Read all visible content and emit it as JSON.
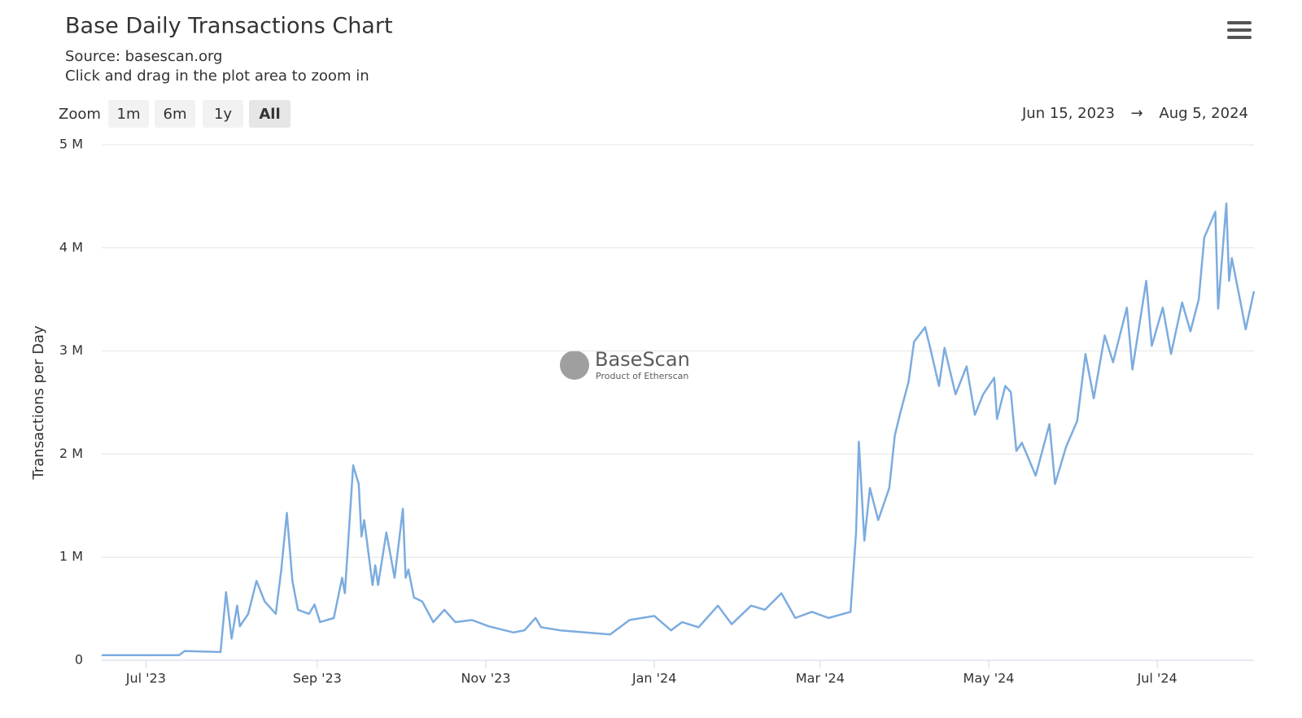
{
  "chart_data": {
    "type": "line",
    "title": "Base Daily Transactions Chart",
    "subtitle": "Source: basescan.org",
    "hint": "Click and drag in the plot area to zoom in",
    "y_label": "Transactions per Day",
    "watermark": {
      "name": "BaseScan",
      "tagline": "Product of Etherscan"
    },
    "grid": true,
    "xlim": [
      "2023-06-15",
      "2024-08-05"
    ],
    "xticks": [
      {
        "value": "2023-07-01",
        "label": "Jul '23"
      },
      {
        "value": "2023-09-01",
        "label": "Sep '23"
      },
      {
        "value": "2023-11-01",
        "label": "Nov '23"
      },
      {
        "value": "2024-01-01",
        "label": "Jan '24"
      },
      {
        "value": "2024-03-01",
        "label": "Mar '24"
      },
      {
        "value": "2024-05-01",
        "label": "May '24"
      },
      {
        "value": "2024-07-01",
        "label": "Jul '24"
      }
    ],
    "ylim": [
      0,
      5000000
    ],
    "yticks": [
      0,
      {
        "value": 1000000,
        "label": "1 M"
      },
      {
        "value": 2000000,
        "label": "2 M"
      },
      {
        "value": 3000000,
        "label": "3 M"
      },
      {
        "value": 4000000,
        "label": "4 M"
      },
      {
        "value": 5000000,
        "label": "5 M"
      }
    ],
    "x": [
      "2023-06-15",
      "2023-07-13",
      "2023-07-15",
      "2023-07-28",
      "2023-07-30",
      "2023-08-01",
      "2023-08-03",
      "2023-08-04",
      "2023-08-07",
      "2023-08-10",
      "2023-08-13",
      "2023-08-17",
      "2023-08-19",
      "2023-08-21",
      "2023-08-23",
      "2023-08-25",
      "2023-08-29",
      "2023-08-31",
      "2023-09-02",
      "2023-09-07",
      "2023-09-10",
      "2023-09-11",
      "2023-09-14",
      "2023-09-16",
      "2023-09-17",
      "2023-09-18",
      "2023-09-21",
      "2023-09-22",
      "2023-09-23",
      "2023-09-26",
      "2023-09-29",
      "2023-10-02",
      "2023-10-03",
      "2023-10-04",
      "2023-10-06",
      "2023-10-09",
      "2023-10-13",
      "2023-10-17",
      "2023-10-21",
      "2023-10-27",
      "2023-11-02",
      "2023-11-11",
      "2023-11-15",
      "2023-11-19",
      "2023-11-21",
      "2023-11-28",
      "2023-12-07",
      "2023-12-16",
      "2023-12-23",
      "2024-01-01",
      "2024-01-07",
      "2024-01-11",
      "2024-01-17",
      "2024-01-24",
      "2024-01-29",
      "2024-02-05",
      "2024-02-10",
      "2024-02-16",
      "2024-02-21",
      "2024-02-27",
      "2024-03-04",
      "2024-03-12",
      "2024-03-14",
      "2024-03-15",
      "2024-03-17",
      "2024-03-19",
      "2024-03-22",
      "2024-03-26",
      "2024-03-28",
      "2024-03-30",
      "2024-04-02",
      "2024-04-04",
      "2024-04-08",
      "2024-04-10",
      "2024-04-13",
      "2024-04-15",
      "2024-04-19",
      "2024-04-23",
      "2024-04-26",
      "2024-04-29",
      "2024-05-03",
      "2024-05-04",
      "2024-05-07",
      "2024-05-09",
      "2024-05-11",
      "2024-05-13",
      "2024-05-18",
      "2024-05-23",
      "2024-05-25",
      "2024-05-29",
      "2024-06-02",
      "2024-06-05",
      "2024-06-08",
      "2024-06-12",
      "2024-06-15",
      "2024-06-20",
      "2024-06-22",
      "2024-06-27",
      "2024-06-29",
      "2024-07-03",
      "2024-07-06",
      "2024-07-10",
      "2024-07-13",
      "2024-07-16",
      "2024-07-18",
      "2024-07-22",
      "2024-07-23",
      "2024-07-26",
      "2024-07-27",
      "2024-07-28",
      "2024-07-31",
      "2024-08-02",
      "2024-08-05"
    ],
    "series": [
      {
        "name": "Transactions per Day",
        "color": "#7cacdf",
        "values": [
          50000,
          50000,
          90000,
          80000,
          660000,
          210000,
          530000,
          330000,
          450000,
          770000,
          570000,
          450000,
          880000,
          1430000,
          770000,
          490000,
          450000,
          540000,
          370000,
          410000,
          800000,
          650000,
          1890000,
          1710000,
          1200000,
          1360000,
          730000,
          920000,
          730000,
          1240000,
          800000,
          1470000,
          800000,
          880000,
          610000,
          570000,
          370000,
          490000,
          370000,
          390000,
          330000,
          270000,
          290000,
          410000,
          320000,
          290000,
          270000,
          250000,
          390000,
          430000,
          290000,
          370000,
          320000,
          530000,
          350000,
          530000,
          490000,
          650000,
          410000,
          470000,
          410000,
          470000,
          1240000,
          2120000,
          1160000,
          1670000,
          1360000,
          1670000,
          2180000,
          2400000,
          2700000,
          3090000,
          3230000,
          3010000,
          2660000,
          3030000,
          2580000,
          2850000,
          2380000,
          2580000,
          2740000,
          2340000,
          2660000,
          2600000,
          2030000,
          2110000,
          1790000,
          2290000,
          1710000,
          2070000,
          2320000,
          2970000,
          2540000,
          3150000,
          2890000,
          3420000,
          2820000,
          3680000,
          3050000,
          3420000,
          2970000,
          3470000,
          3190000,
          3500000,
          4100000,
          4350000,
          3410000,
          4430000,
          3680000,
          3900000,
          3490000,
          3210000,
          3580000
        ]
      }
    ]
  },
  "ui": {
    "zoom_label": "Zoom",
    "zoom_buttons": [
      "1m",
      "6m",
      "1y",
      "All"
    ],
    "range_from": "Jun 15, 2023",
    "range_arrow": "→",
    "range_to": "Aug 5, 2024"
  }
}
